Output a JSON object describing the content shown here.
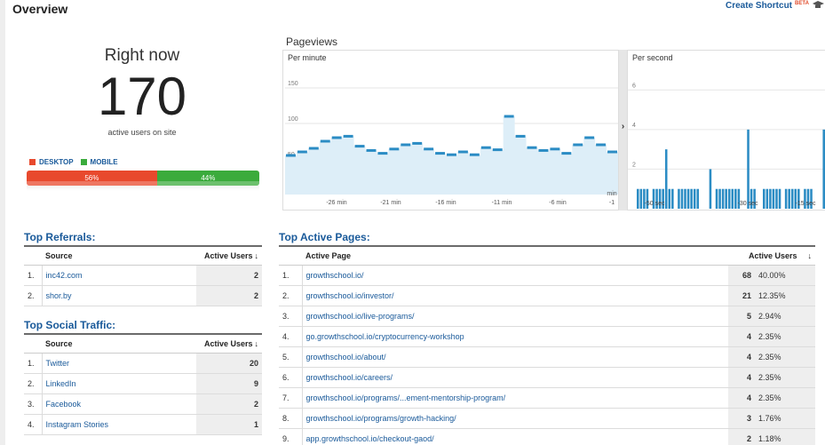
{
  "header": {
    "title": "Overview",
    "shortcut_label": "Create Shortcut",
    "shortcut_badge": "BETA"
  },
  "right_now": {
    "label": "Right now",
    "value": "170",
    "caption": "active users on site",
    "legend": [
      {
        "label": "DESKTOP",
        "color": "#e8492d"
      },
      {
        "label": "MOBILE",
        "color": "#3bab3c"
      }
    ],
    "split": [
      {
        "label": "56%",
        "value": 56,
        "color": "#e8492d"
      },
      {
        "label": "44%",
        "value": 44,
        "color": "#3bab3c"
      }
    ]
  },
  "pageviews": {
    "title": "Pageviews",
    "per_minute": {
      "label": "Per minute",
      "y_ticks": [
        "150",
        "100",
        "50"
      ],
      "x_ticks": [
        "-26 min",
        "-21 min",
        "-16 min",
        "-11 min",
        "-6 min",
        "-1"
      ],
      "x_unit": "min"
    },
    "per_second": {
      "label": "Per second",
      "y_ticks": [
        "6",
        "4",
        "2"
      ],
      "x_ticks": [
        "-50 sec",
        "-30 sec",
        "-15 sec"
      ]
    }
  },
  "chart_data": [
    {
      "type": "area",
      "title": "Per minute",
      "x": [
        -29,
        -28,
        -27,
        -26,
        -25,
        -24,
        -23,
        -22,
        -21,
        -20,
        -19,
        -18,
        -17,
        -16,
        -15,
        -14,
        -13,
        -12,
        -11,
        -10,
        -9,
        -8,
        -7,
        -6,
        -5,
        -4,
        -3,
        -2,
        -1
      ],
      "values": [
        55,
        60,
        65,
        75,
        80,
        82,
        68,
        62,
        58,
        64,
        70,
        72,
        64,
        58,
        56,
        60,
        56,
        66,
        63,
        110,
        82,
        66,
        62,
        64,
        58,
        70,
        80,
        70,
        60
      ],
      "ylim": [
        0,
        175
      ],
      "y_ticks": [
        50,
        100,
        150
      ],
      "color": "#2b8cc4"
    },
    {
      "type": "bar",
      "title": "Per second",
      "values": [
        1,
        1,
        1,
        1,
        0,
        1,
        1,
        1,
        1,
        3,
        1,
        1,
        0,
        1,
        1,
        1,
        1,
        1,
        1,
        1,
        0,
        0,
        0,
        2,
        0,
        1,
        1,
        1,
        1,
        1,
        1,
        1,
        1,
        0,
        0,
        4,
        1,
        1,
        0,
        0,
        1,
        1,
        1,
        1,
        1,
        1,
        0,
        1,
        1,
        1,
        1,
        1,
        0,
        1,
        1,
        1,
        0,
        0,
        0,
        4
      ],
      "ylim": [
        0,
        7
      ],
      "y_ticks": [
        2,
        4,
        6
      ],
      "color": "#2b8cc4"
    }
  ],
  "top_referrals": {
    "title": "Top Referrals:",
    "columns": [
      "Source",
      "Active Users"
    ],
    "rows": [
      {
        "idx": "1.",
        "source": "inc42.com",
        "users": "2"
      },
      {
        "idx": "2.",
        "source": "shor.by",
        "users": "2"
      }
    ]
  },
  "top_social": {
    "title": "Top Social Traffic:",
    "columns": [
      "Source",
      "Active Users"
    ],
    "rows": [
      {
        "idx": "1.",
        "source": "Twitter",
        "users": "20"
      },
      {
        "idx": "2.",
        "source": "LinkedIn",
        "users": "9"
      },
      {
        "idx": "3.",
        "source": "Facebook",
        "users": "2"
      },
      {
        "idx": "4.",
        "source": "Instagram Stories",
        "users": "1"
      }
    ]
  },
  "top_pages": {
    "title": "Top Active Pages:",
    "columns": [
      "Active Page",
      "Active Users"
    ],
    "rows": [
      {
        "idx": "1.",
        "page": "growthschool.io/",
        "users": "68",
        "pct": "40.00%"
      },
      {
        "idx": "2.",
        "page": "growthschool.io/investor/",
        "users": "21",
        "pct": "12.35%"
      },
      {
        "idx": "3.",
        "page": "growthschool.io/live-programs/",
        "users": "5",
        "pct": "2.94%"
      },
      {
        "idx": "4.",
        "page": "go.growthschool.io/cryptocurrency-workshop",
        "users": "4",
        "pct": "2.35%"
      },
      {
        "idx": "5.",
        "page": "growthschool.io/about/",
        "users": "4",
        "pct": "2.35%"
      },
      {
        "idx": "6.",
        "page": "growthschool.io/careers/",
        "users": "4",
        "pct": "2.35%"
      },
      {
        "idx": "7.",
        "page": "growthschool.io/programs/...ement-mentorship-program/",
        "users": "4",
        "pct": "2.35%"
      },
      {
        "idx": "8.",
        "page": "growthschool.io/programs/growth-hacking/",
        "users": "3",
        "pct": "1.76%"
      },
      {
        "idx": "9.",
        "page": "app.growthschool.io/checkout-gaod/",
        "users": "2",
        "pct": "1.18%"
      }
    ]
  }
}
